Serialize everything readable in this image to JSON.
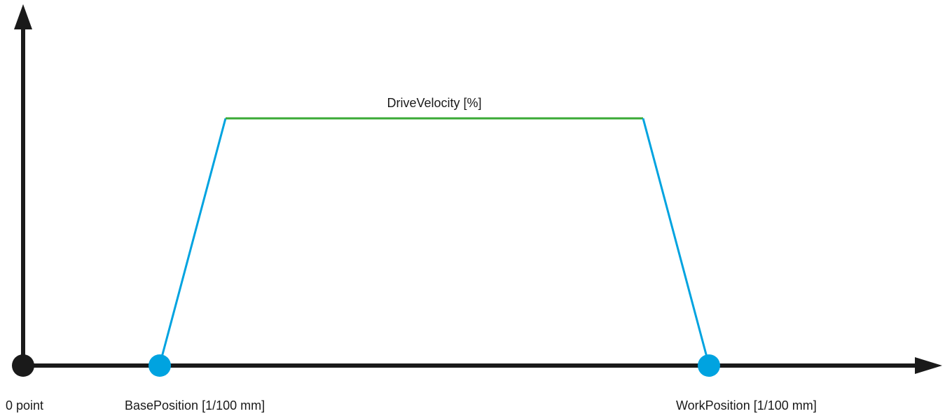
{
  "diagram": {
    "title_label": "DriveVelocity [%]",
    "origin_label": "0 point",
    "base_label": "BasePosition [1/100 mm]",
    "work_label": "WorkPosition [1/100 mm]"
  },
  "colors": {
    "axis": "#1a1a1a",
    "ramp": "#00a3e0",
    "plateau": "#3aaa35",
    "marker": "#00a3e0",
    "origin_marker": "#1a1a1a"
  }
}
